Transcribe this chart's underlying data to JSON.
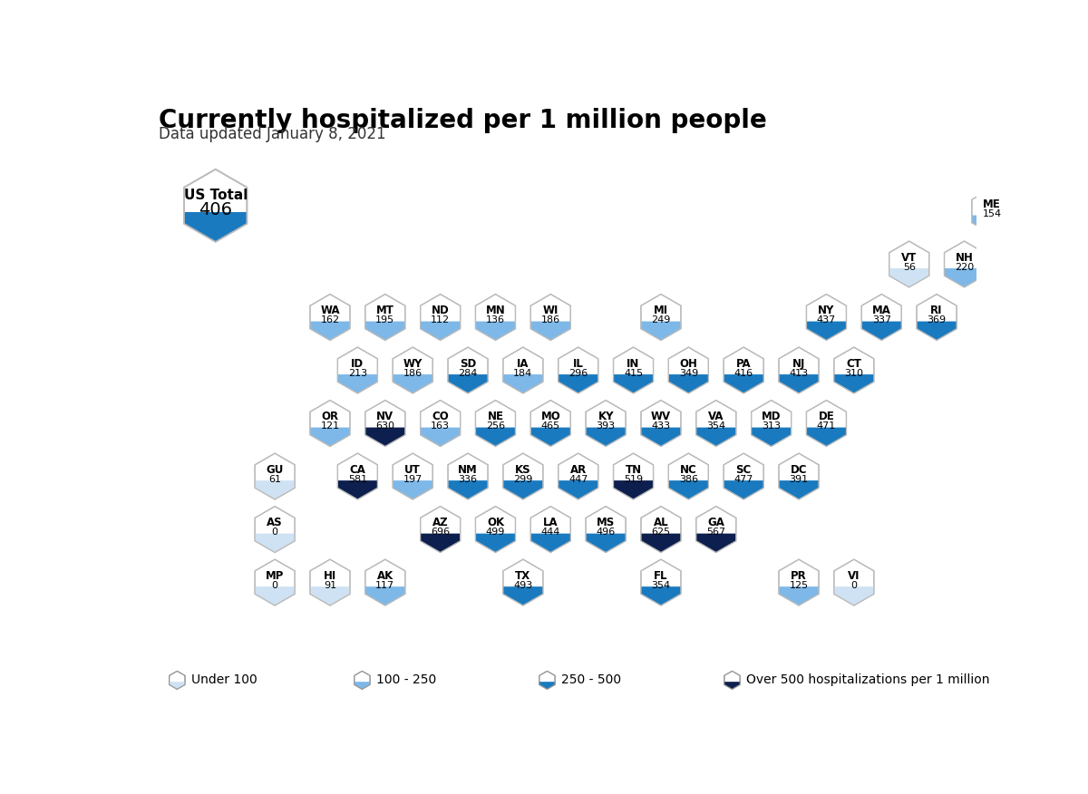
{
  "title": "Currently hospitalized per 1 million people",
  "subtitle": "Data updated January 8, 2021",
  "us_total": 406,
  "legend": [
    {
      "label": "Under 100",
      "color": "#cfe2f3"
    },
    {
      "label": "100 - 250",
      "color": "#7db8e8"
    },
    {
      "label": "250 - 500",
      "color": "#1a7abf"
    },
    {
      "label": "Over 500 hospitalizations per 1 million",
      "color": "#0d1f4e"
    }
  ],
  "color_thresholds": [
    100,
    250,
    500
  ],
  "colors": [
    "#cfe2f3",
    "#7db8e8",
    "#1a7abf",
    "#0d1f4e"
  ],
  "border_color": "#bbbbbb",
  "background": "#ffffff",
  "states": [
    {
      "abbr": "ME",
      "value": 154,
      "col": 13.0,
      "row": 0
    },
    {
      "abbr": "VT",
      "value": 56,
      "col": 11.5,
      "row": 1
    },
    {
      "abbr": "NH",
      "value": 220,
      "col": 12.5,
      "row": 1
    },
    {
      "abbr": "WA",
      "value": 162,
      "col": 1.0,
      "row": 2
    },
    {
      "abbr": "MT",
      "value": 195,
      "col": 2.0,
      "row": 2
    },
    {
      "abbr": "ND",
      "value": 112,
      "col": 3.0,
      "row": 2
    },
    {
      "abbr": "MN",
      "value": 136,
      "col": 4.0,
      "row": 2
    },
    {
      "abbr": "WI",
      "value": 186,
      "col": 5.0,
      "row": 2
    },
    {
      "abbr": "MI",
      "value": 249,
      "col": 7.0,
      "row": 2
    },
    {
      "abbr": "NY",
      "value": 437,
      "col": 10.0,
      "row": 2
    },
    {
      "abbr": "MA",
      "value": 337,
      "col": 11.0,
      "row": 2
    },
    {
      "abbr": "RI",
      "value": 369,
      "col": 12.0,
      "row": 2
    },
    {
      "abbr": "ID",
      "value": 213,
      "col": 1.5,
      "row": 3
    },
    {
      "abbr": "WY",
      "value": 186,
      "col": 2.5,
      "row": 3
    },
    {
      "abbr": "SD",
      "value": 284,
      "col": 3.5,
      "row": 3
    },
    {
      "abbr": "IA",
      "value": 184,
      "col": 4.5,
      "row": 3
    },
    {
      "abbr": "IL",
      "value": 296,
      "col": 5.5,
      "row": 3
    },
    {
      "abbr": "IN",
      "value": 415,
      "col": 6.5,
      "row": 3
    },
    {
      "abbr": "OH",
      "value": 349,
      "col": 7.5,
      "row": 3
    },
    {
      "abbr": "PA",
      "value": 416,
      "col": 8.5,
      "row": 3
    },
    {
      "abbr": "NJ",
      "value": 413,
      "col": 9.5,
      "row": 3
    },
    {
      "abbr": "CT",
      "value": 310,
      "col": 10.5,
      "row": 3
    },
    {
      "abbr": "OR",
      "value": 121,
      "col": 1.0,
      "row": 4
    },
    {
      "abbr": "NV",
      "value": 630,
      "col": 2.0,
      "row": 4
    },
    {
      "abbr": "CO",
      "value": 163,
      "col": 3.0,
      "row": 4
    },
    {
      "abbr": "NE",
      "value": 256,
      "col": 4.0,
      "row": 4
    },
    {
      "abbr": "MO",
      "value": 465,
      "col": 5.0,
      "row": 4
    },
    {
      "abbr": "KY",
      "value": 393,
      "col": 6.0,
      "row": 4
    },
    {
      "abbr": "WV",
      "value": 433,
      "col": 7.0,
      "row": 4
    },
    {
      "abbr": "VA",
      "value": 354,
      "col": 8.0,
      "row": 4
    },
    {
      "abbr": "MD",
      "value": 313,
      "col": 9.0,
      "row": 4
    },
    {
      "abbr": "DE",
      "value": 471,
      "col": 10.0,
      "row": 4
    },
    {
      "abbr": "GU",
      "value": 61,
      "col": 0.0,
      "row": 5
    },
    {
      "abbr": "CA",
      "value": 581,
      "col": 1.5,
      "row": 5
    },
    {
      "abbr": "UT",
      "value": 197,
      "col": 2.5,
      "row": 5
    },
    {
      "abbr": "NM",
      "value": 336,
      "col": 3.5,
      "row": 5
    },
    {
      "abbr": "KS",
      "value": 299,
      "col": 4.5,
      "row": 5
    },
    {
      "abbr": "AR",
      "value": 447,
      "col": 5.5,
      "row": 5
    },
    {
      "abbr": "TN",
      "value": 519,
      "col": 6.5,
      "row": 5
    },
    {
      "abbr": "NC",
      "value": 386,
      "col": 7.5,
      "row": 5
    },
    {
      "abbr": "SC",
      "value": 477,
      "col": 8.5,
      "row": 5
    },
    {
      "abbr": "DC",
      "value": 391,
      "col": 9.5,
      "row": 5
    },
    {
      "abbr": "AS",
      "value": 0,
      "col": 0.0,
      "row": 6
    },
    {
      "abbr": "AZ",
      "value": 696,
      "col": 3.0,
      "row": 6
    },
    {
      "abbr": "OK",
      "value": 499,
      "col": 4.0,
      "row": 6
    },
    {
      "abbr": "LA",
      "value": 444,
      "col": 5.0,
      "row": 6
    },
    {
      "abbr": "MS",
      "value": 496,
      "col": 6.0,
      "row": 6
    },
    {
      "abbr": "AL",
      "value": 625,
      "col": 7.0,
      "row": 6
    },
    {
      "abbr": "GA",
      "value": 567,
      "col": 8.0,
      "row": 6
    },
    {
      "abbr": "MP",
      "value": 0,
      "col": 0.0,
      "row": 7
    },
    {
      "abbr": "HI",
      "value": 91,
      "col": 1.0,
      "row": 7
    },
    {
      "abbr": "AK",
      "value": 117,
      "col": 2.0,
      "row": 7
    },
    {
      "abbr": "TX",
      "value": 493,
      "col": 4.5,
      "row": 7
    },
    {
      "abbr": "FL",
      "value": 354,
      "col": 7.0,
      "row": 7
    },
    {
      "abbr": "PR",
      "value": 125,
      "col": 9.5,
      "row": 7
    },
    {
      "abbr": "VI",
      "value": 0,
      "col": 10.5,
      "row": 7
    }
  ]
}
